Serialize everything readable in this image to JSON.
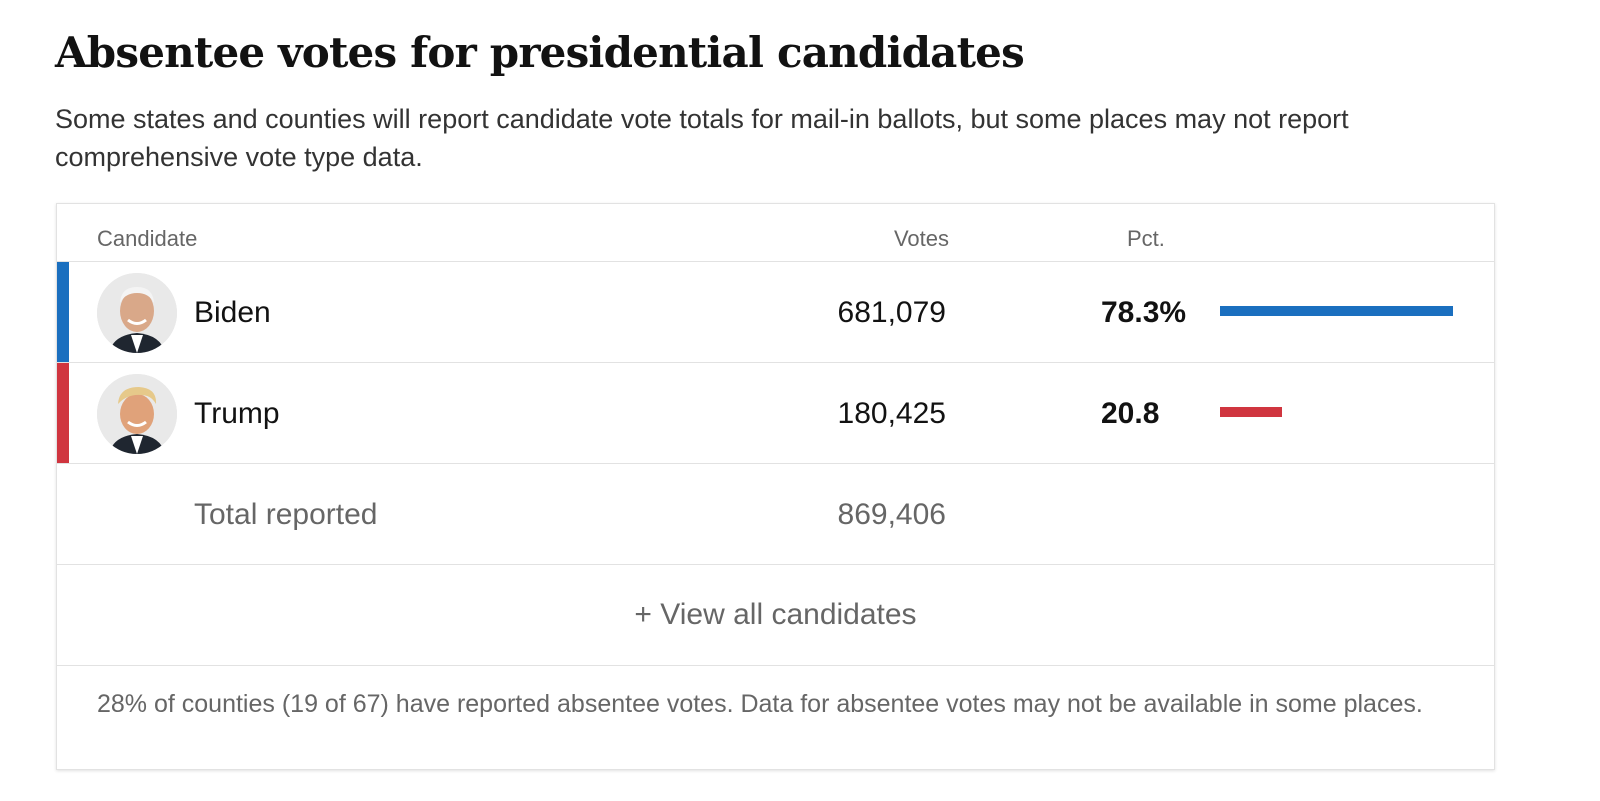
{
  "title": "Absentee votes for presidential candidates",
  "subtitle": "Some states and counties will report candidate vote totals for mail-in ballots, but some places may not report comprehensive vote type data.",
  "table": {
    "headers": {
      "candidate": "Candidate",
      "votes": "Votes",
      "pct": "Pct."
    },
    "rows": [
      {
        "name": "Biden",
        "votes": "681,079",
        "pct": "78.3%",
        "share": 78.3,
        "color": "#1a6fbf"
      },
      {
        "name": "Trump",
        "votes": "180,425",
        "pct": "20.8",
        "share": 20.8,
        "color": "#d0353f"
      }
    ],
    "total": {
      "label": "Total reported",
      "votes": "869,406"
    },
    "view_all": "+ View all candidates",
    "footnote": "28% of counties (19 of 67) have reported absentee votes. Data for absentee votes may not be available in some places."
  }
}
